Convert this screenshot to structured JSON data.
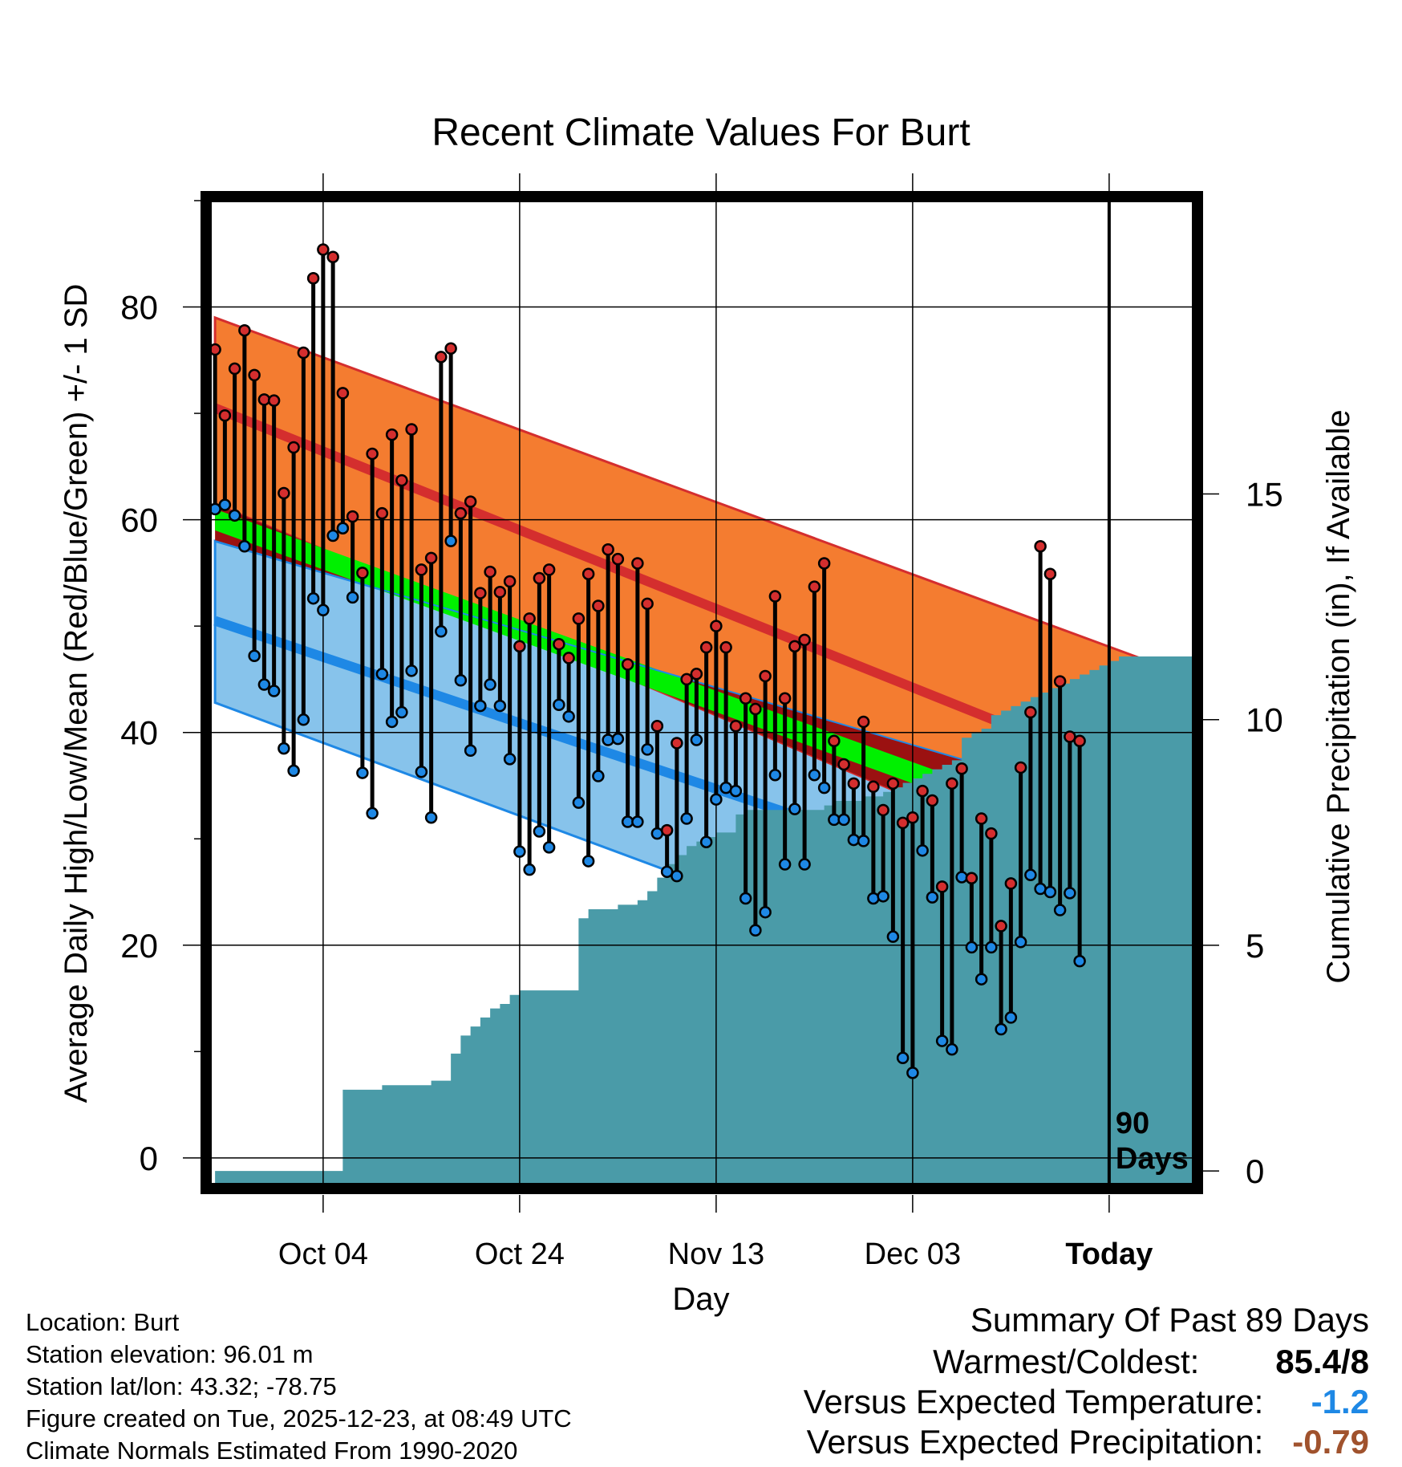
{
  "chart_data": {
    "type": "line",
    "title": "Recent Climate Values For Burt",
    "xlabel": "Day",
    "ylabel": "Average Daily High/Low/Mean (Red/Blue/Green) +/- 1 SD",
    "y2label": "Cumulative Precipitation (in), If Available",
    "ylim": [
      -2.5,
      90
    ],
    "y2lim": [
      -0.3,
      21.5
    ],
    "yticks": [
      "0",
      "20",
      "40",
      "60",
      "80"
    ],
    "y2ticks": [
      "0",
      "5",
      "10",
      "15"
    ],
    "xlim": [
      -11.5,
      88.5
    ],
    "xtick_positions": [
      0,
      20,
      40,
      60,
      80
    ],
    "xticks": [
      "Oct 04",
      "Oct 24",
      "Nov 13",
      "Dec 03",
      "Today"
    ],
    "today_marker": {
      "day": 80,
      "label_line1": "90",
      "label_line2": "Days"
    },
    "normals": {
      "days": [
        -11,
        89
      ],
      "high_upper": [
        79,
        45
      ],
      "high_mean": [
        70.5,
        33.5
      ],
      "high_lower": [
        61.5,
        22.5
      ],
      "mean_upper": [
        61,
        27.5
      ],
      "mean_lower": [
        59,
        25.5
      ],
      "low_upper": [
        58,
        31
      ],
      "low_mean": [
        50.5,
        19.5
      ],
      "low_lower": [
        42.8,
        8.5
      ]
    },
    "series": [
      {
        "name": "Daily High",
        "color": "#d42e2e",
        "values": [
          76,
          69.8,
          74.2,
          77.8,
          73.6,
          71.3,
          71.2,
          62.5,
          66.8,
          75.7,
          82.7,
          85.4,
          84.7,
          71.9,
          60.3,
          55,
          66.2,
          60.6,
          68,
          63.7,
          68.5,
          55.3,
          56.4,
          75.3,
          76.1,
          60.6,
          61.7,
          53.1,
          55.1,
          53.2,
          54.2,
          48.1,
          50.7,
          54.5,
          55.3,
          48.3,
          47,
          50.7,
          54.9,
          51.9,
          57.2,
          56.3,
          46.4,
          55.9,
          52.1,
          40.6,
          30.8,
          39,
          45,
          45.5,
          48,
          50,
          48,
          40.6,
          43.2,
          42.2,
          45.3,
          52.8,
          43.2,
          48.1,
          48.7,
          53.7,
          55.9,
          39.2,
          37,
          35.2,
          41,
          34.9,
          32.7,
          35.2,
          31.5,
          32,
          34.5,
          33.6,
          25.5,
          35.2,
          36.6,
          26.3,
          31.9,
          30.5,
          21.8,
          25.8,
          36.7,
          41.9,
          57.5,
          54.9,
          44.8,
          39.6,
          39.2
        ]
      },
      {
        "name": "Daily Low",
        "color": "#1e88e5",
        "values": [
          61,
          61.4,
          60.4,
          57.5,
          47.2,
          44.5,
          43.9,
          38.5,
          36.4,
          41.2,
          52.6,
          51.5,
          58.5,
          59.2,
          52.7,
          36.2,
          32.4,
          45.5,
          41,
          41.9,
          45.8,
          36.3,
          32,
          49.5,
          58,
          44.9,
          38.3,
          42.5,
          44.5,
          42.5,
          37.5,
          28.8,
          27.1,
          30.7,
          29.2,
          42.6,
          41.5,
          33.4,
          27.9,
          35.9,
          39.3,
          39.4,
          31.6,
          31.6,
          38.4,
          30.5,
          26.9,
          26.5,
          31.9,
          39.3,
          29.7,
          33.7,
          34.8,
          34.5,
          24.4,
          21.4,
          23.1,
          36,
          27.6,
          32.8,
          27.6,
          36,
          34.8,
          31.8,
          31.8,
          29.9,
          29.8,
          24.4,
          24.6,
          20.8,
          9.4,
          8,
          28.9,
          24.5,
          11,
          10.2,
          26.4,
          19.8,
          16.8,
          19.8,
          12.1,
          13.2,
          20.3,
          26.6,
          25.3,
          25,
          23.3,
          24.9,
          18.5
        ]
      },
      {
        "name": "Cumulative Precipitation (in)",
        "color": "#4a9ba8",
        "values": [
          0,
          0,
          0,
          0,
          0,
          0,
          0,
          0,
          0,
          0,
          0,
          0,
          0,
          1.8,
          1.8,
          1.8,
          1.8,
          1.9,
          1.9,
          1.9,
          1.9,
          1.9,
          2,
          2,
          2.6,
          3,
          3.2,
          3.4,
          3.6,
          3.7,
          3.9,
          4,
          4,
          4,
          4,
          4,
          4,
          5.6,
          5.8,
          5.8,
          5.8,
          5.9,
          5.9,
          6,
          6.2,
          6.5,
          6.8,
          7,
          7.2,
          7.3,
          7.4,
          7.5,
          7.5,
          7.9,
          8,
          8,
          8,
          8,
          8,
          8,
          8,
          8,
          8.1,
          8.2,
          8.2,
          8.2,
          8.3,
          8.3,
          8.4,
          8.5,
          8.6,
          8.7,
          8.8,
          8.9,
          9,
          9.1,
          9.6,
          9.7,
          9.8,
          10.1,
          10.2,
          10.3,
          10.4,
          10.5,
          10.6,
          10.7,
          10.8,
          10.9,
          11,
          11.1,
          11.2,
          11.3,
          11.4,
          11.4,
          11.4,
          11.4,
          11.4,
          11.4,
          11.4,
          11.4
        ]
      }
    ]
  },
  "footer": {
    "location": "Location: Burt",
    "elevation": "Station elevation: 96.01 m",
    "latlon": "Station lat/lon: 43.32; -78.75",
    "created": "Figure created on Tue, 2025-12-23, at 08:49 UTC",
    "normals": "Climate Normals Estimated From 1990-2020"
  },
  "summary": {
    "title": "Summary Of Past 89 Days",
    "warm_cold_label": "Warmest/Coldest:",
    "warm_cold_value": "85.4/8",
    "temp_label": "Versus Expected Temperature:",
    "temp_value": "-1.2",
    "temp_color": "#1e88e5",
    "precip_label": "Versus Expected Precipitation:",
    "precip_value": "-0.79",
    "precip_color": "#a0522d"
  },
  "colors": {
    "high_band": "#f47c30",
    "high_mean": "#d42e2e",
    "mean_band": "#00f000",
    "overlap_band": "#9b1111",
    "low_band": "#87c3eb",
    "low_mean": "#1e88e5",
    "precip": "#4a9ba8"
  }
}
